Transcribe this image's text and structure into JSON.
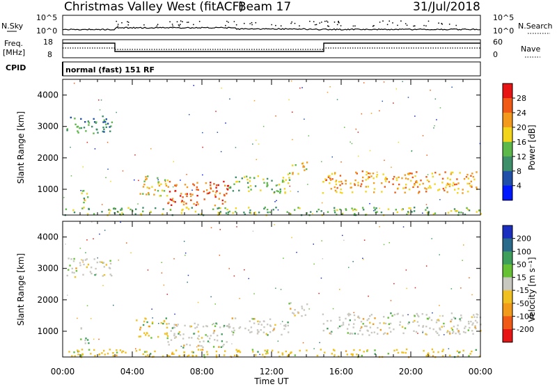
{
  "header": {
    "title": "Christmas Valley West (fitACF)",
    "beam": "Beam 17",
    "date": "31/Jul/2018"
  },
  "top_panels": {
    "nsky_label": "N.Sky",
    "nsky_ticks": [
      "10^5",
      "10^0"
    ],
    "nsearch_label": "N.Search",
    "nsearch_ticks": [
      "10^5",
      "10^0"
    ],
    "freq_label": "Freq.",
    "freq_unit": "[MHz]",
    "freq_ticks": [
      "18",
      "8"
    ],
    "nave_label": "Nave",
    "nave_ticks": [
      "60",
      "0"
    ],
    "cpid_label": "CPID",
    "cpid_text": "normal (fast) 151 RF"
  },
  "colors": {
    "power": [
      "#0018ff",
      "#1f4fa8",
      "#3d8f6a",
      "#5db84a",
      "#f2d51a",
      "#f39a1c",
      "#f05a14",
      "#e81414"
    ],
    "velocity": [
      "#1a2fbf",
      "#2a6a8a",
      "#3d9f5a",
      "#66c234",
      "#c8c8c0",
      "#f0c020",
      "#f29a1a",
      "#f05a14",
      "#e81414"
    ]
  },
  "chart_data": [
    {
      "type": "heatmap",
      "panel": "power",
      "ylabel": "Slant Range [km]",
      "xlabel": "Time UT",
      "xticks": [
        "00:00",
        "04:00",
        "08:00",
        "12:00",
        "16:00",
        "20:00",
        "00:00"
      ],
      "yticks": [
        "1000",
        "2000",
        "3000",
        "4000"
      ],
      "xlim_hours": [
        0,
        24
      ],
      "ylim_km": [
        180,
        4500
      ],
      "colorbar_label": "Power [dB]",
      "colorbar_ticks": [
        "4",
        "8",
        "12",
        "16",
        "20",
        "24",
        "28"
      ],
      "features": [
        {
          "t0": 0.2,
          "t1": 2.8,
          "r0": 2750,
          "r1": 3350,
          "level": 2
        },
        {
          "t0": 1.0,
          "t1": 1.5,
          "r0": 600,
          "r1": 1150,
          "level": 3
        },
        {
          "t0": 4.2,
          "t1": 6.0,
          "r0": 800,
          "r1": 1450,
          "level": 4
        },
        {
          "t0": 6.0,
          "t1": 9.5,
          "r0": 500,
          "r1": 1300,
          "level": 6
        },
        {
          "t0": 9.5,
          "t1": 13.0,
          "r0": 900,
          "r1": 1450,
          "level": 3
        },
        {
          "t0": 12.9,
          "t1": 14.1,
          "r0": 1500,
          "r1": 1950,
          "level": 4
        },
        {
          "t0": 14.9,
          "t1": 24.0,
          "r0": 900,
          "r1": 1600,
          "level": 5
        },
        {
          "t0": 0.0,
          "t1": 24.0,
          "r0": 200,
          "r1": 450,
          "level": 3
        }
      ]
    },
    {
      "type": "heatmap",
      "panel": "velocity",
      "ylabel": "Slant Range [km]",
      "xlabel": "Time UT",
      "xticks": [
        "00:00",
        "04:00",
        "08:00",
        "12:00",
        "16:00",
        "20:00",
        "00:00"
      ],
      "yticks": [
        "1000",
        "2000",
        "3000",
        "4000"
      ],
      "xlim_hours": [
        0,
        24
      ],
      "ylim_km": [
        180,
        4500
      ],
      "colorbar_label": "Velocity [m s⁻¹]",
      "colorbar_ticks": [
        "200",
        "100",
        "50",
        "15",
        "-15",
        "-50",
        "-100",
        "-200"
      ],
      "features": [
        {
          "t0": 0.2,
          "t1": 2.8,
          "r0": 2750,
          "r1": 3350,
          "level": 4
        },
        {
          "t0": 1.0,
          "t1": 1.5,
          "r0": 600,
          "r1": 1150,
          "level": 4
        },
        {
          "t0": 4.2,
          "t1": 6.0,
          "r0": 800,
          "r1": 1450,
          "level": 5
        },
        {
          "t0": 6.0,
          "t1": 9.5,
          "r0": 500,
          "r1": 1300,
          "level": 4
        },
        {
          "t0": 9.5,
          "t1": 13.0,
          "r0": 900,
          "r1": 1450,
          "level": 4
        },
        {
          "t0": 12.9,
          "t1": 14.1,
          "r0": 1500,
          "r1": 1950,
          "level": 4
        },
        {
          "t0": 14.9,
          "t1": 24.0,
          "r0": 900,
          "r1": 1600,
          "level": 4
        },
        {
          "t0": 0.0,
          "t1": 24.0,
          "r0": 200,
          "r1": 450,
          "level": 5
        }
      ]
    }
  ]
}
